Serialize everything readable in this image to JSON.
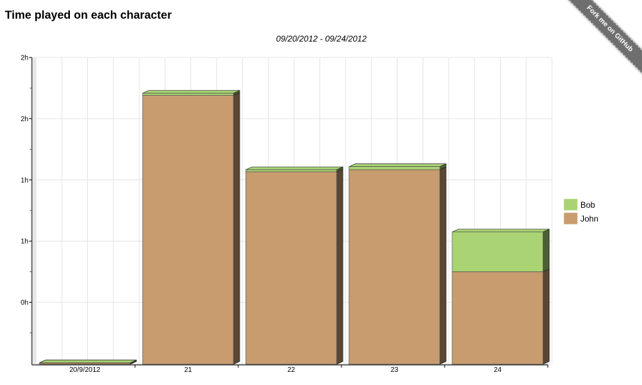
{
  "page": {
    "title": "Time played on each character",
    "ribbon_label": "Fork me on GitHub"
  },
  "colors": {
    "bob": "#aad474",
    "john": "#c89c6e",
    "grid": "#e4e4e4"
  },
  "chart_data": {
    "type": "bar",
    "stacked": true,
    "style": "3d",
    "subtitle": "09/20/2012 - 09/24/2012",
    "categories": [
      "20/9/2012",
      "21",
      "22",
      "23",
      "24"
    ],
    "series": [
      {
        "name": "John",
        "color": "#c89c6e",
        "values": [
          0,
          2.13,
          1.38,
          1.4,
          0.4
        ]
      },
      {
        "name": "Bob",
        "color": "#aad474",
        "values": [
          0,
          0.02,
          0.02,
          0.03,
          0.39
        ]
      }
    ],
    "y_ticks": [
      "0h",
      "1h",
      "1h",
      "2h",
      "2h"
    ],
    "ylim": [
      -0.5,
      2.5
    ],
    "grid": true,
    "legend_position": "right"
  }
}
